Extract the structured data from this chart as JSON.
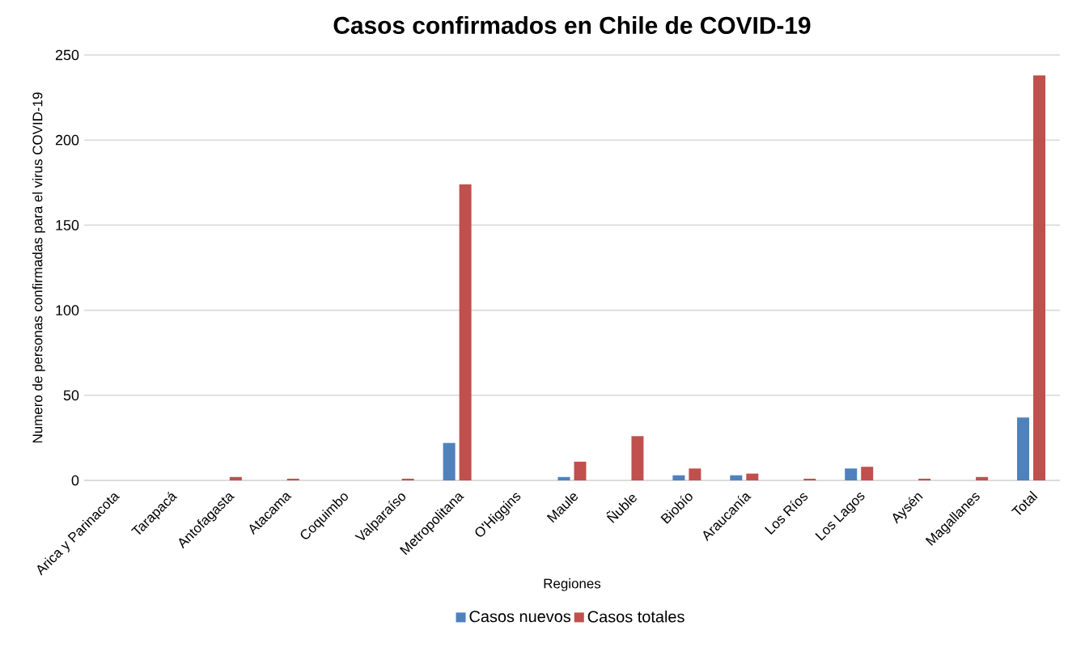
{
  "chart_data": {
    "type": "bar",
    "title": "Casos confirmados en Chile de COVID-19",
    "xlabel": "Regiones",
    "ylabel": "Numero de personas confirmadas para el virus COVID-19",
    "categories": [
      "Arica y Parinacota",
      "Tarapacá",
      "Antofagasta",
      "Atacama",
      "Coquimbo",
      "Valparaíso",
      "Metropolitana",
      "O'Higgins",
      "Maule",
      "Ñuble",
      "Biobío",
      "Araucanía",
      "Los Ríos",
      "Los Lagos",
      "Aysén",
      "Magallanes",
      "Total"
    ],
    "series": [
      {
        "name": "Casos nuevos",
        "color": "#4f81bd",
        "values": [
          0,
          0,
          0,
          0,
          0,
          0,
          22,
          0,
          2,
          0,
          3,
          3,
          0,
          7,
          0,
          0,
          37
        ]
      },
      {
        "name": "Casos totales",
        "color": "#c0504d",
        "values": [
          0,
          0,
          2,
          1,
          0,
          1,
          174,
          0,
          11,
          26,
          7,
          4,
          1,
          8,
          1,
          2,
          238
        ]
      }
    ],
    "ylim": [
      0,
      250
    ],
    "yticks": [
      0,
      50,
      100,
      150,
      200,
      250
    ],
    "grid": "y",
    "legend": "bottom"
  }
}
